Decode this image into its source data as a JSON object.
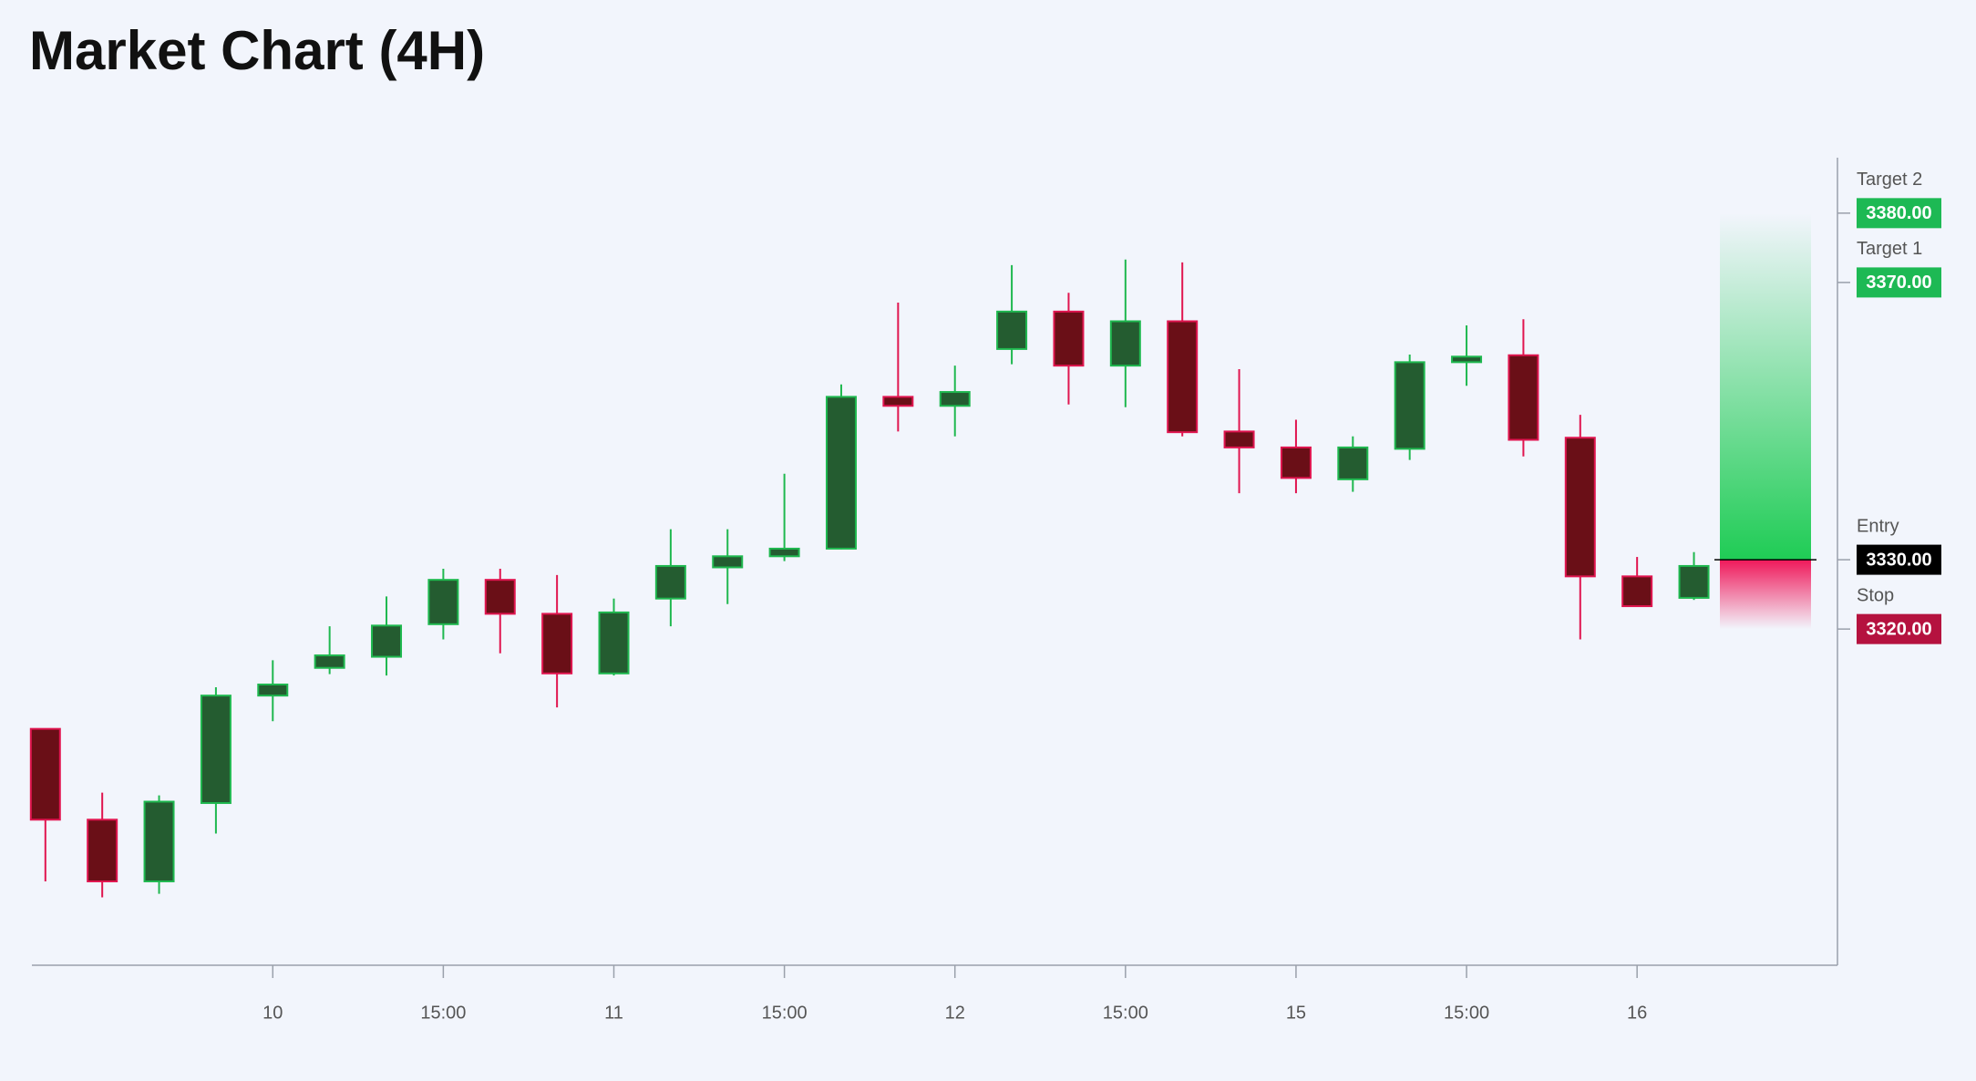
{
  "chart_data": {
    "type": "candlestick",
    "title": "Market Chart (4H)",
    "categories": [
      null,
      null,
      null,
      null,
      "10",
      null,
      null,
      "15:00",
      null,
      null,
      "11",
      null,
      null,
      "15:00",
      null,
      null,
      "12",
      null,
      null,
      "15:00",
      null,
      null,
      "15",
      null,
      null,
      "15:00",
      null,
      null,
      "16",
      null
    ],
    "open": [
      3305.6,
      3292.5,
      3283.6,
      3294.9,
      3310.4,
      3314.4,
      3316.0,
      3320.7,
      3327.1,
      3322.2,
      3313.6,
      3324.4,
      3328.9,
      3330.5,
      3331.6,
      3353.5,
      3352.2,
      3360.4,
      3365.8,
      3358.0,
      3364.4,
      3348.5,
      3346.2,
      3341.6,
      3346.0,
      3358.5,
      3359.5,
      3347.6,
      3327.6,
      3324.5
    ],
    "high": [
      3305.6,
      3296.4,
      3296.0,
      3311.6,
      3315.5,
      3320.4,
      3324.7,
      3328.7,
      3328.7,
      3327.8,
      3324.4,
      3334.4,
      3334.4,
      3342.4,
      3355.3,
      3367.1,
      3358.0,
      3372.5,
      3368.5,
      3373.3,
      3372.9,
      3357.5,
      3350.2,
      3347.8,
      3359.6,
      3363.8,
      3364.7,
      3350.9,
      3330.4,
      3331.1
    ],
    "low": [
      3283.6,
      3281.3,
      3281.8,
      3290.5,
      3306.7,
      3313.5,
      3313.3,
      3318.5,
      3316.5,
      3308.7,
      3313.3,
      3320.4,
      3323.6,
      3329.8,
      3331.5,
      3348.5,
      3347.8,
      3358.2,
      3352.4,
      3352.0,
      3347.8,
      3339.6,
      3339.6,
      3339.8,
      3344.4,
      3355.1,
      3344.9,
      3318.5,
      3323.3,
      3324.2
    ],
    "close": [
      3292.5,
      3283.6,
      3295.1,
      3310.4,
      3312.0,
      3316.2,
      3320.5,
      3327.1,
      3322.2,
      3313.6,
      3322.4,
      3329.1,
      3330.5,
      3331.6,
      3353.5,
      3352.2,
      3354.2,
      3365.8,
      3358.0,
      3364.4,
      3348.4,
      3346.2,
      3341.8,
      3346.2,
      3358.5,
      3359.3,
      3347.3,
      3327.6,
      3323.3,
      3329.1
    ],
    "up_color": "#245c30",
    "up_edge": "#1fb84f",
    "down_color": "#6a0f17",
    "down_edge": "#e0154f",
    "ylim": [
      3271.5,
      3388
    ],
    "levels": [
      {
        "name": "Target 2",
        "price": {
          "value": 3380,
          "label": "3380.00"
        },
        "color": "#1db954"
      },
      {
        "name": "Target 1",
        "price": {
          "value": 3370,
          "label": "3370.00"
        },
        "color": "#1db954"
      },
      {
        "name": "Entry",
        "price": {
          "value": 3330,
          "label": "3330.00"
        },
        "color": "#000000"
      },
      {
        "name": "Stop",
        "price": {
          "value": 3320,
          "label": "3320.00"
        },
        "color": "#b5123f"
      }
    ]
  }
}
